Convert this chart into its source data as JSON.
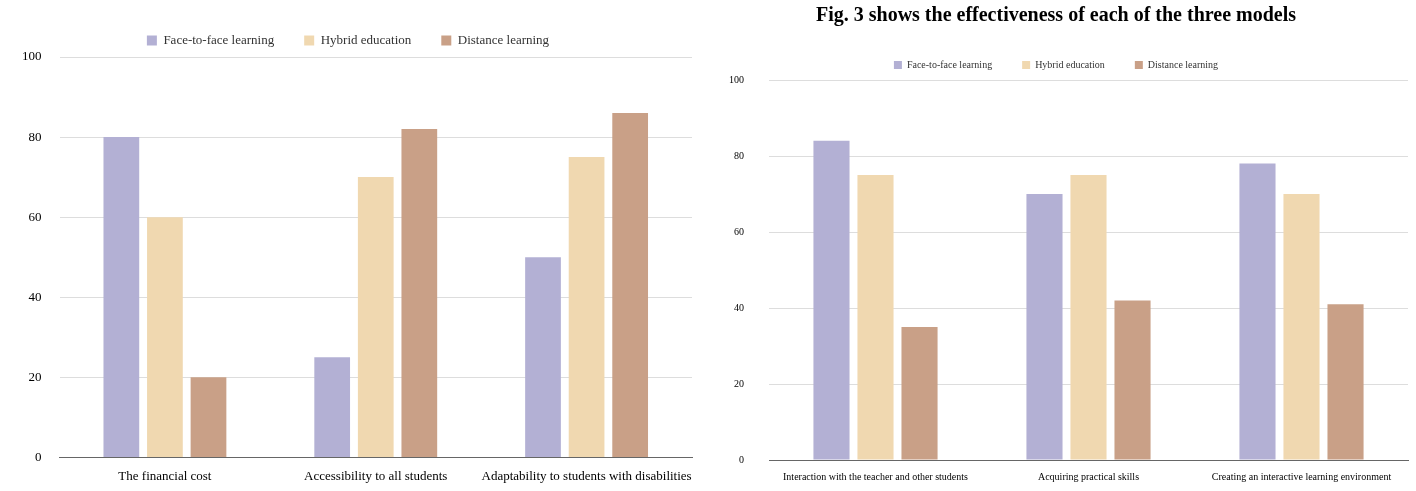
{
  "chart_data": [
    {
      "type": "bar",
      "categories": [
        "The financial cost",
        "Accessibility to all students",
        "Adaptability to students with disabilities"
      ],
      "series": [
        {
          "name": "Face-to-face learning",
          "color": "#b3b0d4",
          "values": [
            80,
            25,
            50
          ]
        },
        {
          "name": "Hybrid education",
          "color": "#f0d8b0",
          "values": [
            60,
            70,
            75
          ]
        },
        {
          "name": "Distance learning",
          "color": "#c9a087",
          "values": [
            20,
            82,
            86
          ]
        }
      ],
      "ylim": [
        0,
        100
      ],
      "yticks": [
        0,
        20,
        40,
        60,
        80,
        100
      ],
      "grid": "y",
      "legend": "top"
    },
    {
      "type": "bar",
      "title": "Fig. 3 shows the effectiveness of each of the three models",
      "categories": [
        "Interaction with the teacher and other students",
        "Acquiring practical skills",
        "Creating an interactive learning environment"
      ],
      "series": [
        {
          "name": "Face-to-face learning",
          "color": "#b3b0d4",
          "values": [
            84,
            70,
            78
          ]
        },
        {
          "name": "Hybrid education",
          "color": "#f0d8b0",
          "values": [
            75,
            75,
            70
          ]
        },
        {
          "name": "Distance learning",
          "color": "#c9a087",
          "values": [
            35,
            42,
            41
          ]
        }
      ],
      "ylim": [
        0,
        100
      ],
      "yticks": [
        0,
        20,
        40,
        60,
        80,
        100
      ],
      "grid": "y",
      "legend": "top"
    }
  ]
}
